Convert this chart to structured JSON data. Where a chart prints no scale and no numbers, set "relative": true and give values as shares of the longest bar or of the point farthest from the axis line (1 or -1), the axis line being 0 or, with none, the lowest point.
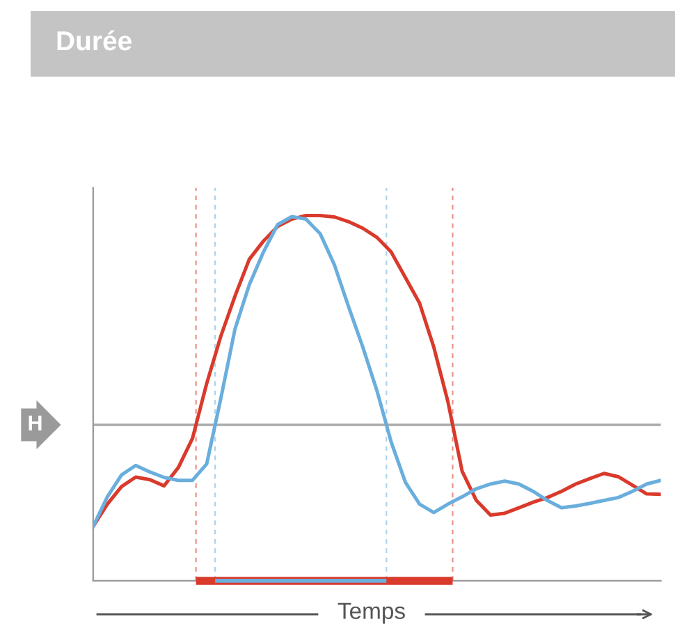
{
  "chart_data": {
    "type": "line",
    "title": "Durée",
    "xlabel": "Temps",
    "relative": true,
    "marker": "none",
    "line_style": "solid",
    "categories": [
      null,
      null,
      null,
      null,
      null,
      null,
      null,
      null,
      null,
      null,
      null,
      null,
      null,
      null,
      null,
      null,
      null,
      null,
      null,
      null,
      null,
      null,
      null,
      null,
      null,
      null,
      null,
      null,
      null,
      null,
      null,
      null,
      null,
      null,
      null,
      null,
      null,
      null,
      null,
      null,
      null
    ],
    "series": [
      {
        "color": "#d93a2b",
        "values": [
          0.149,
          0.21,
          0.258,
          0.284,
          0.277,
          0.26,
          0.31,
          0.39,
          0.54,
          0.67,
          0.78,
          0.88,
          0.93,
          0.97,
          0.99,
          1.0,
          1.0,
          0.996,
          0.983,
          0.965,
          0.94,
          0.9,
          0.83,
          0.76,
          0.64,
          0.49,
          0.3,
          0.22,
          0.18,
          0.185,
          0.2,
          0.215,
          0.228,
          0.245,
          0.265,
          0.28,
          0.294,
          0.285,
          0.262,
          0.238,
          0.237
        ]
      },
      {
        "color": "#6aaedd",
        "values": [
          0.149,
          0.23,
          0.29,
          0.316,
          0.298,
          0.283,
          0.275,
          0.275,
          0.32,
          0.5,
          0.69,
          0.81,
          0.9,
          0.975,
          0.997,
          0.99,
          0.95,
          0.865,
          0.75,
          0.64,
          0.52,
          0.38,
          0.27,
          0.21,
          0.187,
          0.21,
          0.23,
          0.252,
          0.265,
          0.273,
          0.265,
          0.245,
          0.22,
          0.2,
          0.205,
          0.212,
          0.22,
          0.228,
          0.245,
          0.265,
          0.275
        ]
      }
    ],
    "ref_lines": [
      {
        "axis": "y",
        "value": 0.427,
        "label": "H",
        "color": "#aaaaaa",
        "line_style": "solid"
      }
    ]
  }
}
